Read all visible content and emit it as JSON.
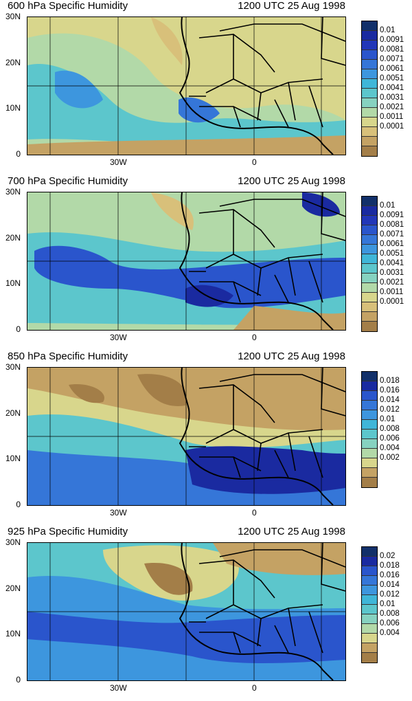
{
  "date_label": "1200 UTC 25 Aug 1998",
  "axis": {
    "y_ticks": [
      "30N",
      "20N",
      "10N",
      "0"
    ],
    "x_ticks": [
      "30W",
      "0"
    ]
  },
  "panels": [
    {
      "title": "600 hPa Specific Humidity",
      "legend_labels": [
        "0.01",
        "0.0091",
        "0.0081",
        "0.0071",
        "0.0061",
        "0.0051",
        "0.0041",
        "0.0031",
        "0.0021",
        "0.0011",
        "0.0001"
      ],
      "ramp": [
        "#12306a",
        "#1a2aa0",
        "#2236b8",
        "#2a55cc",
        "#3576d8",
        "#3d96de",
        "#3fb6d8",
        "#5cc6cc",
        "#86d2c0",
        "#b2d9a8",
        "#d8d68c",
        "#d8c07a",
        "#c4a264",
        "#a37e48"
      ]
    },
    {
      "title": "700 hPa Specific Humidity",
      "legend_labels": [
        "0.01",
        "0.0091",
        "0.0081",
        "0.0071",
        "0.0061",
        "0.0051",
        "0.0041",
        "0.0031",
        "0.0021",
        "0.0011",
        "0.0001"
      ],
      "ramp": [
        "#12306a",
        "#1a2aa0",
        "#2236b8",
        "#2a55cc",
        "#3576d8",
        "#3d96de",
        "#3fb6d8",
        "#5cc6cc",
        "#86d2c0",
        "#b2d9a8",
        "#d8d68c",
        "#d8c07a",
        "#c4a264",
        "#a37e48"
      ]
    },
    {
      "title": "850 hPa Specific Humidity",
      "legend_labels": [
        "0.018",
        "0.016",
        "0.014",
        "0.012",
        "0.01",
        "0.008",
        "0.006",
        "0.004",
        "0.002"
      ],
      "ramp": [
        "#12306a",
        "#1a2aa0",
        "#2a55cc",
        "#3576d8",
        "#3d96de",
        "#3fb6d8",
        "#5cc6cc",
        "#86d2c0",
        "#b2d9a8",
        "#d8d68c",
        "#c4a264",
        "#a37e48"
      ]
    },
    {
      "title": "925 hPa Specific Humidity",
      "legend_labels": [
        "0.02",
        "0.018",
        "0.016",
        "0.014",
        "0.012",
        "0.01",
        "0.008",
        "0.006",
        "0.004"
      ],
      "ramp": [
        "#12306a",
        "#1a2aa0",
        "#2a55cc",
        "#3576d8",
        "#3d96de",
        "#3fb6d8",
        "#5cc6cc",
        "#86d2c0",
        "#b2d9a8",
        "#d8d68c",
        "#c4a264",
        "#a37e48"
      ]
    }
  ]
}
